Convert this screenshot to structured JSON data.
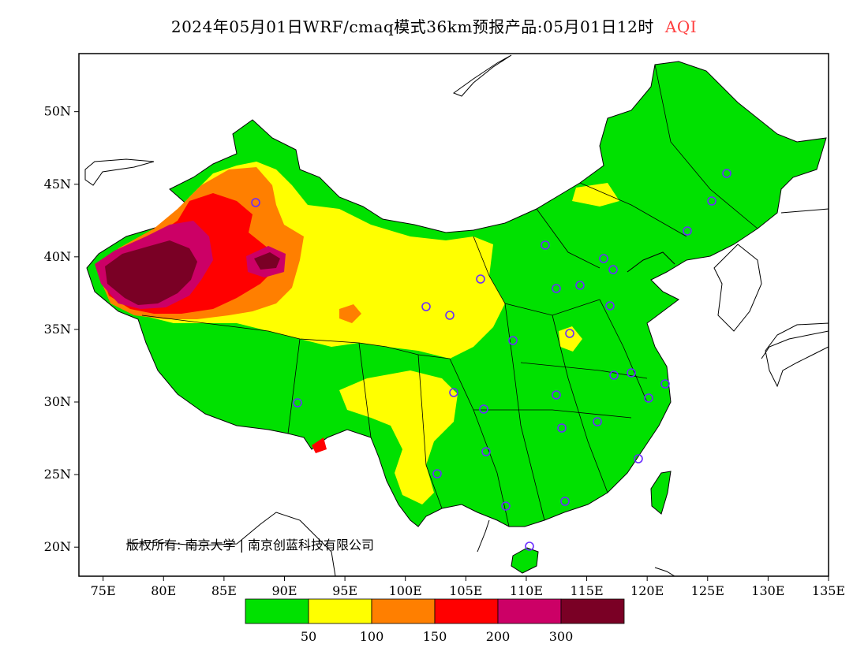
{
  "title": {
    "text": "2024年05月01日WRF/cmaq模式36km预报产品:05月01日12时",
    "quantity": "AQI",
    "quantity_color": "#ff4040"
  },
  "axes": {
    "x_ticks": [
      "75E",
      "80E",
      "85E",
      "90E",
      "95E",
      "100E",
      "105E",
      "110E",
      "115E",
      "120E",
      "125E",
      "130E",
      "135E"
    ],
    "y_ticks": [
      "20N",
      "25N",
      "30N",
      "35N",
      "40N",
      "45N",
      "50N"
    ],
    "lon_range": [
      73,
      135
    ],
    "lat_range": [
      18,
      54
    ]
  },
  "copyright": "版权所有: 南京大学 | 南京创蓝科技有限公司",
  "legend": {
    "colors": [
      "#00e100",
      "#ffff00",
      "#ff7f00",
      "#ff0000",
      "#cc0066",
      "#7a0025"
    ],
    "labels": [
      "50",
      "100",
      "150",
      "200",
      "300"
    ]
  }
}
